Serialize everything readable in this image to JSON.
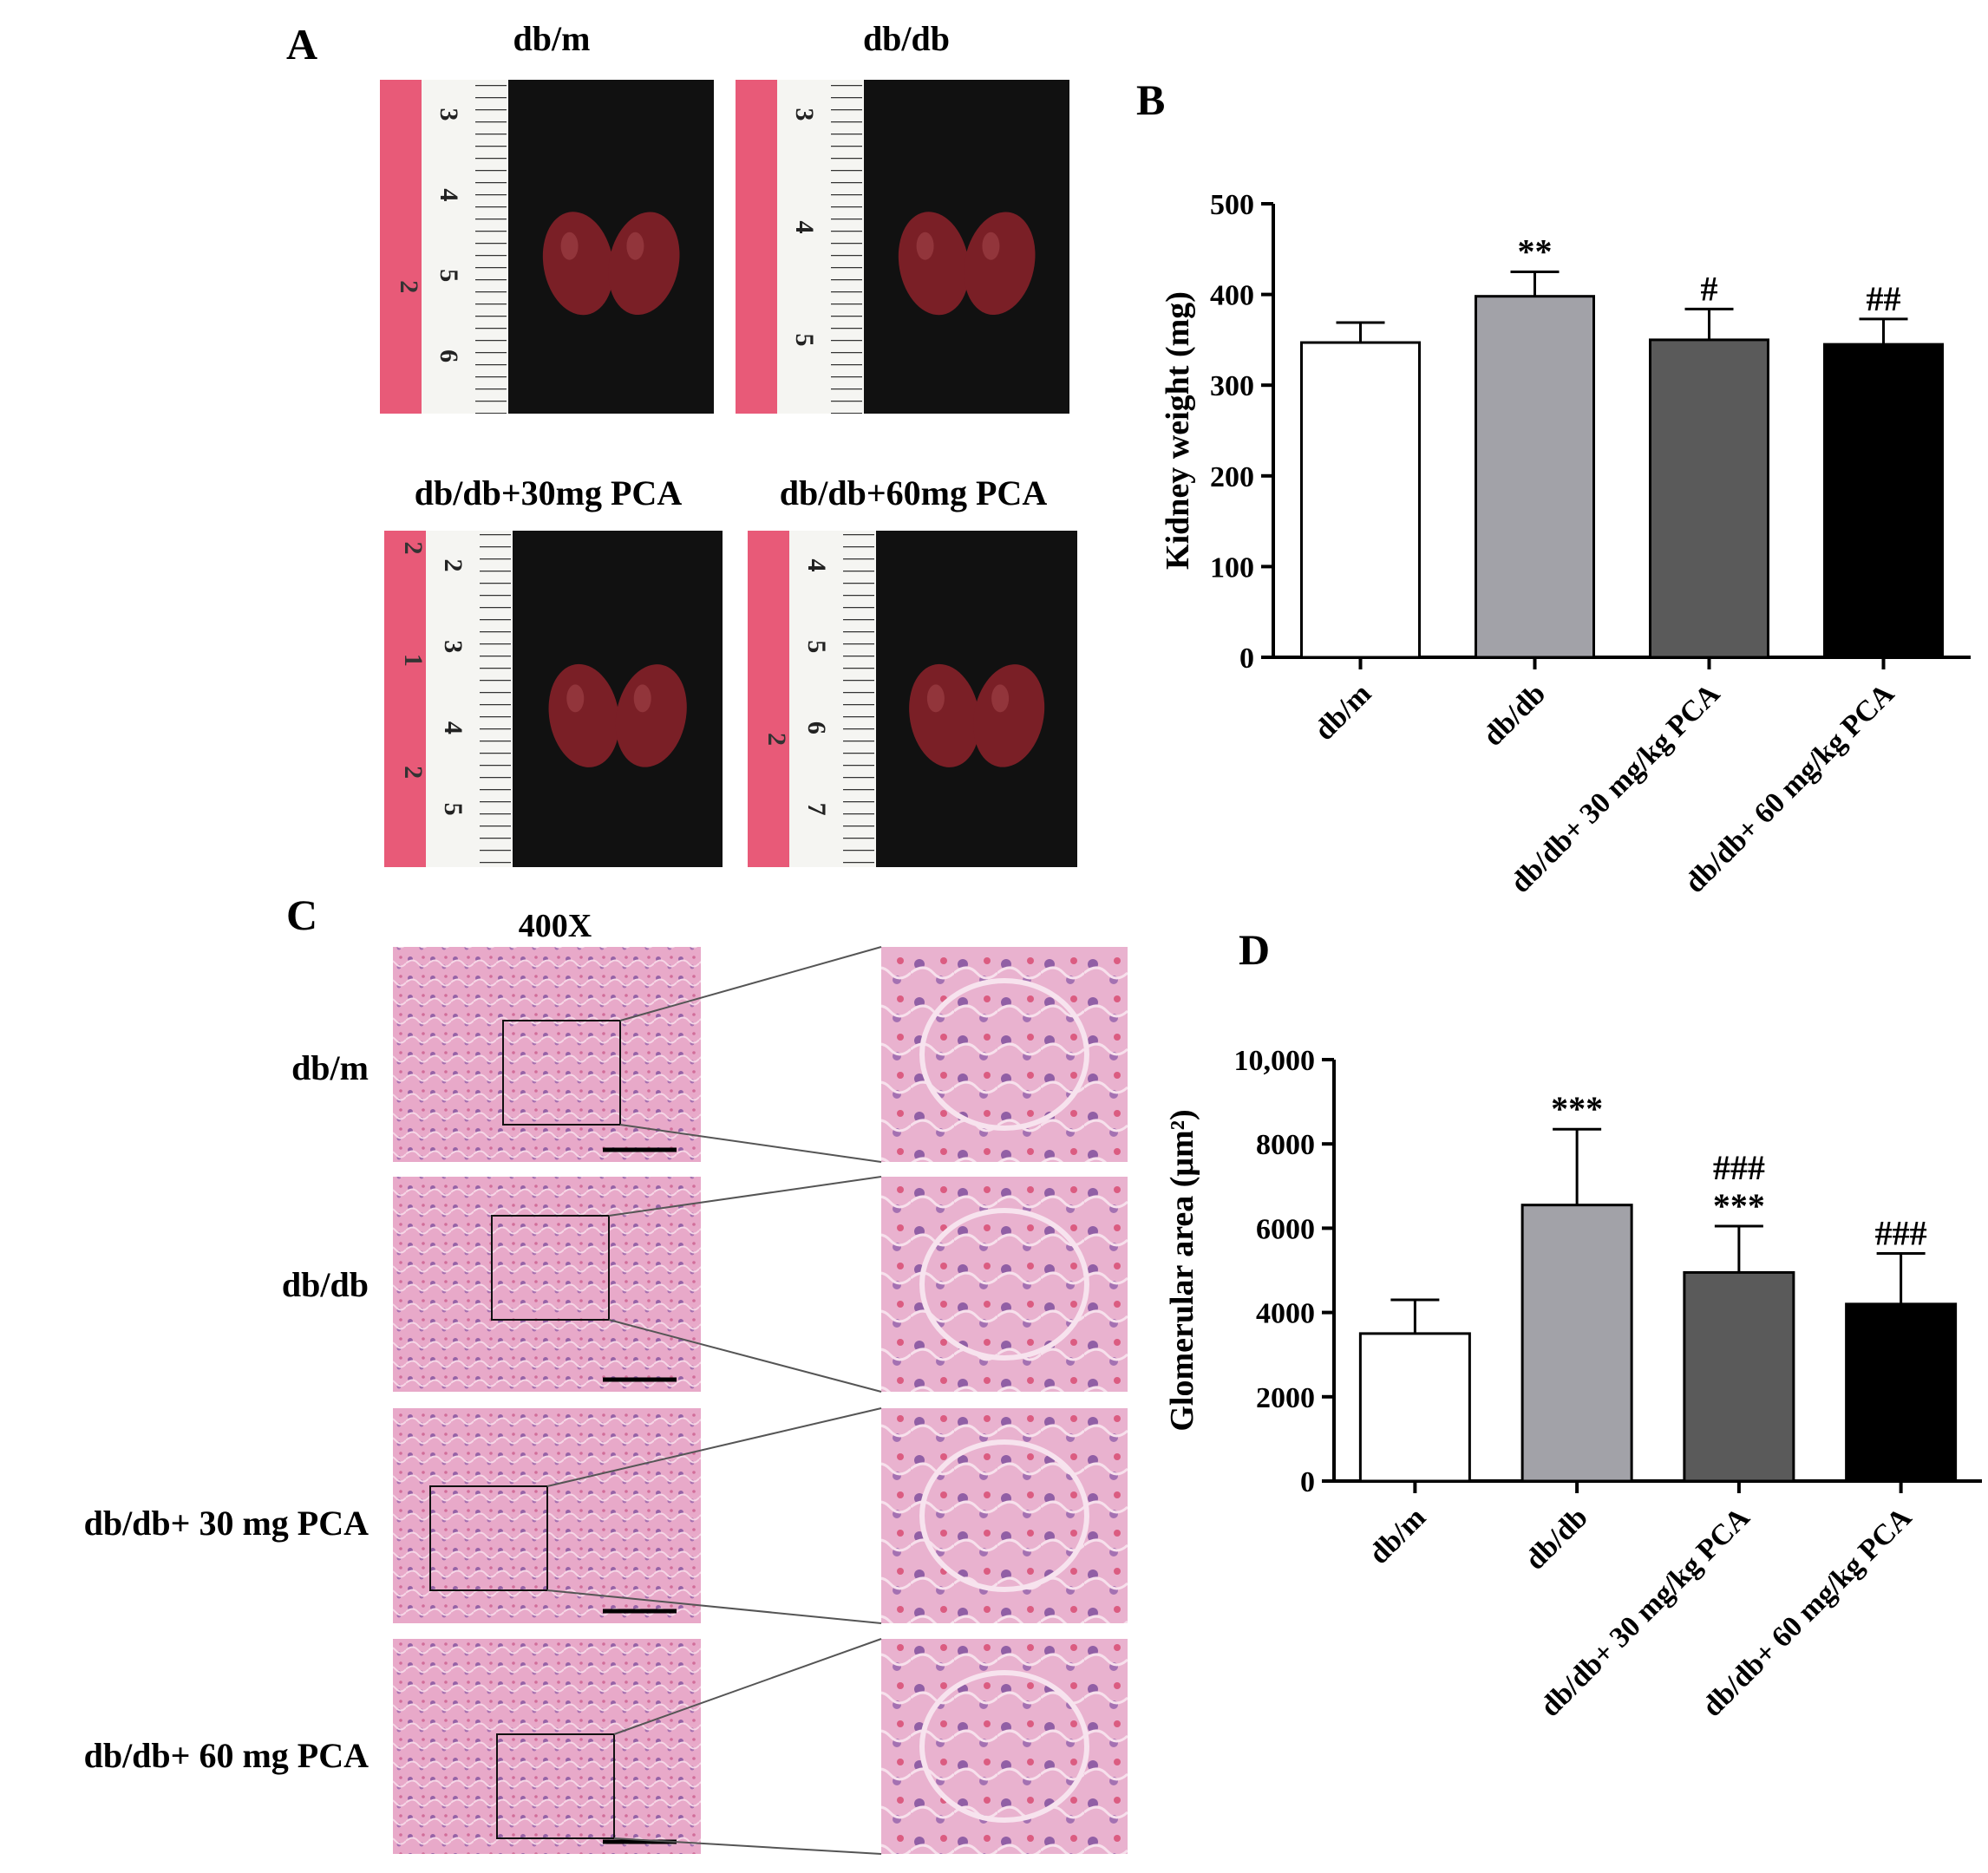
{
  "panels": {
    "A": {
      "letter": "A",
      "photos": [
        {
          "title": "db/m",
          "ruler_cm": [
            "2"
          ],
          "ruler_marks": [
            "3",
            "4",
            "5",
            "6"
          ]
        },
        {
          "title": "db/db",
          "ruler_cm": [],
          "ruler_marks": [
            "3",
            "4",
            "5"
          ]
        },
        {
          "title": "db/db+30mg PCA",
          "ruler_cm": [
            "2",
            "1",
            "2"
          ],
          "ruler_marks": [
            "2",
            "3",
            "4",
            "5"
          ]
        },
        {
          "title": "db/db+60mg PCA",
          "ruler_cm": [
            "2"
          ],
          "ruler_marks": [
            "4",
            "5",
            "6",
            "7"
          ]
        }
      ]
    },
    "B": {
      "letter": "B"
    },
    "C": {
      "letter": "C",
      "magnification": "400X",
      "rows": [
        "db/m",
        "db/db",
        "db/db+ 30 mg PCA",
        "db/db+ 60 mg PCA"
      ]
    },
    "D": {
      "letter": "D"
    }
  },
  "colors": {
    "bar_fills": [
      "#ffffff",
      "#a2a2a8",
      "#5a5a5a",
      "#000000"
    ],
    "ruler_pink": "#e85a78",
    "photo_bg": "#111111",
    "kidney": "#7a1f26",
    "tissue": "#e7a8c8"
  },
  "chart_data": [
    {
      "type": "bar",
      "categories": [
        "db/m",
        "db/db",
        "db/db+ 30 mg/kg PCA",
        "db/db+ 60 mg/kg PCA"
      ],
      "values": [
        347,
        398,
        350,
        345
      ],
      "errors": [
        22,
        27,
        34,
        28
      ],
      "annotations": [
        [],
        [
          "**"
        ],
        [
          "#"
        ],
        [
          "##"
        ]
      ],
      "ylabel": "Kidney weight (mg)",
      "ylim": [
        0,
        500
      ],
      "yticks": [
        0,
        100,
        200,
        300,
        400,
        500
      ],
      "ytick_labels": [
        "0",
        "100",
        "200",
        "300",
        "400",
        "500"
      ],
      "grid": false
    },
    {
      "type": "bar",
      "categories": [
        "db/m",
        "db/db",
        "db/db+ 30 mg/kg PCA",
        "db/db+ 60 mg/kg PCA"
      ],
      "values": [
        3500,
        6550,
        4950,
        4200
      ],
      "errors": [
        800,
        1800,
        1100,
        1200
      ],
      "annotations": [
        [],
        [
          "***"
        ],
        [
          "###",
          "***"
        ],
        [
          "###"
        ]
      ],
      "ylabel": "Glomerular area (μm²)",
      "ylim": [
        0,
        10000
      ],
      "yticks": [
        0,
        2000,
        4000,
        6000,
        8000,
        10000
      ],
      "ytick_labels": [
        "0",
        "2000",
        "4000",
        "6000",
        "8000",
        "10,000"
      ],
      "grid": false
    }
  ]
}
